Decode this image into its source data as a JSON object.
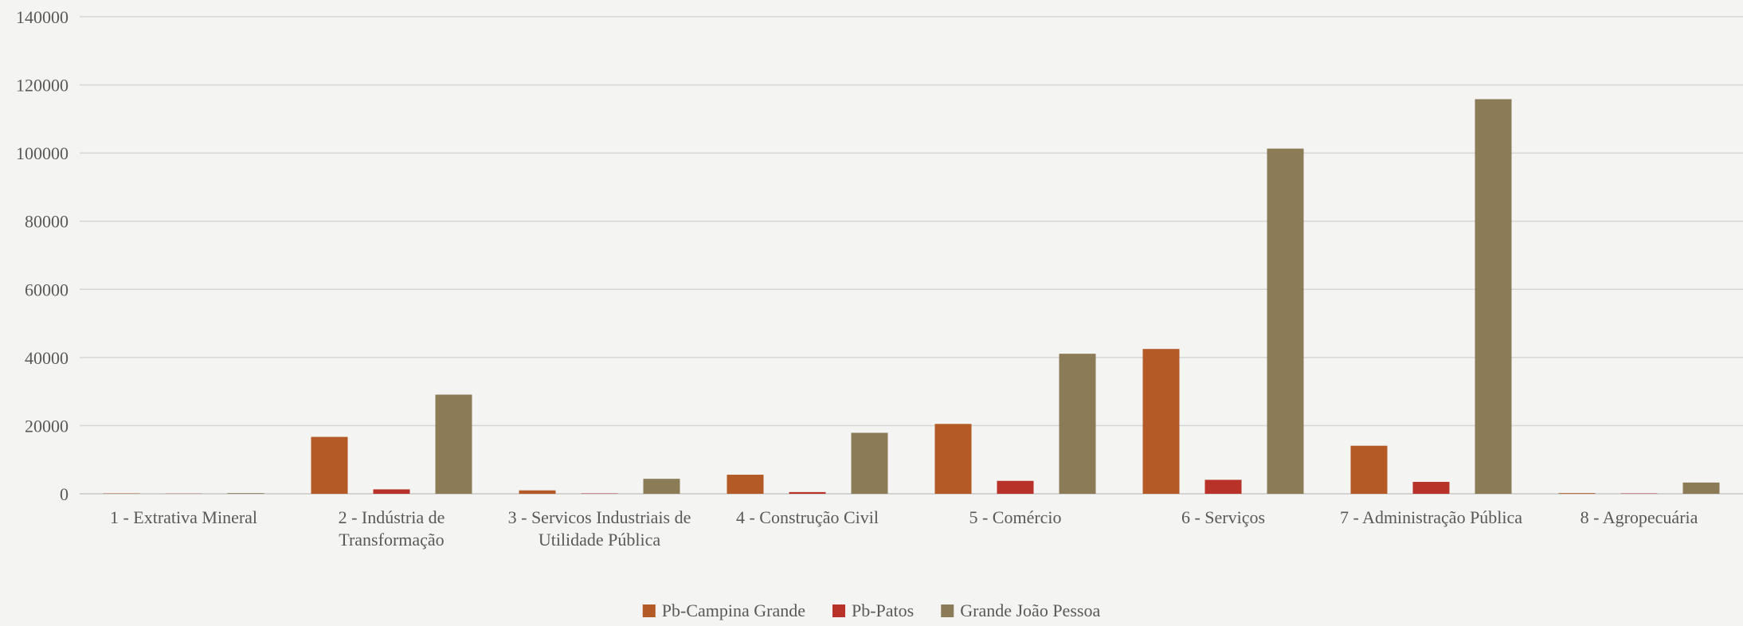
{
  "chart_data": {
    "type": "bar",
    "title": "",
    "xlabel": "",
    "ylabel": "",
    "ylim": [
      0,
      140000
    ],
    "yticks": [
      0,
      20000,
      40000,
      60000,
      80000,
      100000,
      120000,
      140000
    ],
    "grid": true,
    "legend_position": "bottom",
    "categories": [
      [
        "1 - Extrativa Mineral"
      ],
      [
        "2 - Indústria de",
        "Transformação"
      ],
      [
        "3 - Servicos Industriais de",
        "Utilidade Pública"
      ],
      [
        "4 - Construção Civil"
      ],
      [
        "5 - Comércio"
      ],
      [
        "6 - Serviços"
      ],
      [
        "7 - Administração Pública"
      ],
      [
        "8 - Agropecuária"
      ]
    ],
    "series": [
      {
        "name": "Pb-Campina Grande",
        "color": "#b35a27",
        "values": [
          100,
          16700,
          1000,
          5600,
          20500,
          42500,
          14100,
          200
        ]
      },
      {
        "name": "Pb-Patos",
        "color": "#b8322a",
        "values": [
          50,
          1300,
          100,
          500,
          3800,
          4100,
          3500,
          100
        ]
      },
      {
        "name": "Grande João Pessoa",
        "color": "#8b7b57",
        "values": [
          200,
          29100,
          4400,
          17900,
          41100,
          101300,
          115800,
          3300
        ]
      }
    ]
  }
}
